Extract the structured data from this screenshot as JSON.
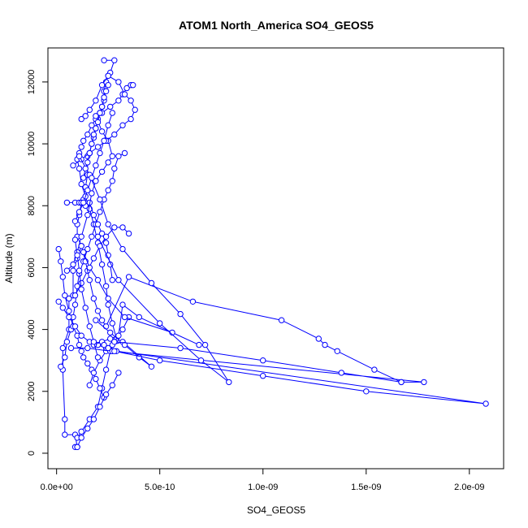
{
  "chart_data": {
    "type": "scatter",
    "title": "ATOM1 North_America SO4_GEOS5",
    "xlabel": "SO4_GEOS5",
    "ylabel": "Altitude (m)",
    "xlim": [
      -4.2e-11,
      2.166e-09
    ],
    "ylim": [
      -500,
      13100
    ],
    "x_ticks": [
      0,
      5e-10,
      1e-09,
      1.5e-09,
      2e-09
    ],
    "x_tick_labels": [
      "0.0e+00",
      "5.0e-10",
      "1.0e-09",
      "1.5e-09",
      "2.0e-09"
    ],
    "y_ticks": [
      0,
      2000,
      4000,
      6000,
      8000,
      10000,
      12000
    ],
    "y_tick_labels": [
      "0",
      "2000",
      "4000",
      "6000",
      "8000",
      "10000",
      "12000"
    ],
    "color": "#0000ff",
    "mode": "lines+open-circles",
    "series": [
      {
        "x": [
          9e-11,
          1e-10,
          9e-11,
          4e-11,
          4e-11,
          3e-11,
          3e-11,
          6e-11,
          6e-11,
          8e-11,
          8e-11,
          1e-10,
          1.2e-10,
          1e-10,
          1e-10,
          1.1e-10,
          1.2e-10,
          1.3e-10,
          1.4e-10,
          1.5e-10,
          1.5e-10,
          1.6e-10,
          1.7e-10,
          1.8e-10,
          1.9e-10,
          2e-10,
          2.1e-10,
          2.2e-10,
          2.3e-10,
          2.3e-10,
          2.4e-10,
          2.5e-10,
          2.6e-10,
          2.8e-10,
          2.3e-10
        ],
        "y": [
          200,
          200,
          600,
          600,
          1100,
          2700,
          3400,
          4000,
          5000,
          5100,
          5900,
          6300,
          6700,
          7000,
          7400,
          7700,
          8100,
          8200,
          8600,
          9000,
          9600,
          9700,
          10000,
          10200,
          10500,
          10800,
          11000,
          11200,
          11400,
          11700,
          12000,
          12200,
          12300,
          12700,
          12700
        ]
      },
      {
        "x": [
          1e-10,
          1.2e-10,
          1.6e-10,
          2e-10,
          2.2e-10,
          2.4e-10,
          2.6e-10,
          2.9e-10,
          2.7e-10,
          2.5e-10,
          2.4e-10,
          2.2e-10,
          2e-10,
          1.8e-10,
          1.6e-10,
          1.4e-10,
          1.2e-10,
          1.1e-10,
          1e-10,
          1.1e-10,
          1.2e-10,
          1.3e-10,
          1.5e-10,
          1.7e-10,
          1.9e-10,
          2.2e-10,
          2.6e-10,
          3e-10,
          3.2e-10,
          3.4e-10,
          3.6e-10,
          3.7e-10
        ],
        "y": [
          500,
          700,
          1100,
          1500,
          2100,
          2700,
          3300,
          3700,
          4200,
          4800,
          5400,
          6100,
          6800,
          7400,
          7900,
          8300,
          8700,
          9200,
          9500,
          9700,
          9900,
          10100,
          10300,
          10600,
          10800,
          11000,
          11200,
          11400,
          11600,
          11800,
          11900,
          11900
        ]
      },
      {
        "x": [
          2e-11,
          4e-11,
          5e-11,
          7e-11,
          8e-11,
          9e-11,
          1e-10,
          1.1e-10,
          1.3e-10,
          1.5e-10,
          1.7e-10,
          1.9e-10,
          2.1e-10,
          2.3e-10,
          2.5e-10,
          2.7e-10,
          2.8e-10,
          3e-10,
          3.3e-10
        ],
        "y": [
          2800,
          3100,
          3600,
          4000,
          4400,
          4800,
          5400,
          5800,
          6200,
          6600,
          7000,
          7400,
          7800,
          8200,
          8500,
          8800,
          9200,
          9600,
          9700
        ]
      },
      {
        "x": [
          5e-11,
          9e-11,
          1.1e-10,
          1.2e-10,
          1.4e-10,
          1.6e-10,
          1.8e-10,
          2e-10,
          2.2e-10,
          2.4e-10,
          2.5e-10,
          2.6e-10,
          2.7e-10
        ],
        "y": [
          8100,
          8100,
          8100,
          8100,
          8000,
          8100,
          7700,
          7400,
          7100,
          6800,
          6400,
          6100,
          5600
        ]
      },
      {
        "x": [
          5e-11,
          8e-11,
          1e-10,
          1.2e-10,
          1.5e-10,
          1.7e-10,
          1.9e-10,
          2.2e-10,
          2.5e-10,
          2.7e-10,
          2.5e-10,
          2.2e-10,
          1.9e-10
        ],
        "y": [
          5900,
          6100,
          6500,
          7000,
          7700,
          8400,
          8800,
          9100,
          9400,
          9600,
          10100,
          10400,
          10900
        ]
      },
      {
        "x": [
          1.2e-10,
          1.4e-10,
          1.6e-10,
          1.9e-10,
          2.2e-10,
          2.5e-10,
          3e-10,
          3.3e-10,
          3.6e-10,
          3.8e-10,
          3.6e-10,
          3.2e-10,
          2.8e-10,
          2.4e-10,
          2e-10,
          1.6e-10,
          1.2e-10,
          8e-11
        ],
        "y": [
          10800,
          10900,
          11100,
          11400,
          11900,
          12200,
          12000,
          11600,
          11400,
          11100,
          10800,
          10600,
          10300,
          10100,
          9900,
          9700,
          9500,
          9300
        ]
      },
      {
        "x": [
          1e-11,
          2e-11,
          3e-11,
          4e-11,
          6e-11,
          8e-11,
          1e-10,
          1.1e-10,
          1.2e-10,
          1.3e-10,
          1.5e-10,
          1.7e-10,
          1.9e-10,
          2.1e-10,
          2.3e-10
        ],
        "y": [
          6600,
          6200,
          5700,
          5100,
          4600,
          4100,
          3800,
          3500,
          3300,
          3100,
          2900,
          2700,
          2400,
          2100,
          1800
        ]
      },
      {
        "x": [
          9e-11,
          1.2e-10,
          1.5e-10,
          1.8e-10,
          2.1e-10,
          2.4e-10,
          2.8e-10,
          3.2e-10,
          3.5e-10
        ],
        "y": [
          5100,
          5500,
          5900,
          6300,
          6700,
          7000,
          7300,
          7300,
          7100
        ]
      },
      {
        "x": [
          1e-11,
          3e-11,
          6e-11,
          9e-11,
          1.2e-10,
          1.6e-10,
          2e-10,
          2.4e-10,
          2.8e-10,
          3.2e-10,
          3.5e-10
        ],
        "y": [
          4900,
          4700,
          4400,
          4100,
          3800,
          3600,
          3500,
          3400,
          3600,
          4000,
          4400
        ]
      },
      {
        "x": [
          1.2e-10,
          1.4e-10,
          1.6e-10,
          1.8e-10,
          2e-10,
          2.2e-10,
          2.4e-10,
          3.5e-10,
          6.6e-10,
          1.09e-09,
          1.27e-09,
          1.3e-09,
          1.36e-09,
          1.54e-09,
          1.67e-09
        ],
        "y": [
          6700,
          6200,
          5600,
          5000,
          4600,
          4300,
          4100,
          5700,
          4900,
          4300,
          3700,
          3500,
          3300,
          2700,
          2300
        ]
      },
      {
        "x": [
          1.6e-10,
          1.8e-10,
          2.1e-10,
          2.4e-10,
          2.7e-10,
          3.2e-10,
          4.6e-10,
          4e-10,
          3.3e-10,
          2.6e-10,
          1.9e-10
        ],
        "y": [
          2200,
          2600,
          3000,
          3300,
          3500,
          3600,
          2800,
          3100,
          3500,
          3900,
          4300
        ]
      },
      {
        "x": [
          1.8e-10,
          2.2e-10,
          2.6e-10,
          3e-10,
          3.2e-10,
          4e-10,
          6.9e-10,
          5.6e-10,
          3.3e-10,
          2.5e-10,
          2e-10,
          1.6e-10,
          1.3e-10
        ],
        "y": [
          3500,
          3600,
          3700,
          3800,
          4800,
          4400,
          3500,
          3900,
          4400,
          5000,
          5600,
          6000,
          6500
        ]
      },
      {
        "x": [
          7e-11,
          1.5e-10,
          2.6e-10,
          1.78e-09,
          1.67e-09,
          1.38e-09,
          1e-09,
          6e-10,
          2.8e-10
        ],
        "y": [
          3400,
          3400,
          3300,
          2300,
          2300,
          2600,
          3000,
          3400,
          3600
        ]
      },
      {
        "x": [
          2.3e-10,
          2.5e-10,
          2.7e-10,
          2.9e-10,
          2.08e-09,
          1.5e-09,
          1e-09,
          5e-10,
          2.8e-10
        ],
        "y": [
          3500,
          3400,
          3300,
          3300,
          1600,
          2000,
          2500,
          3000,
          3300
        ]
      },
      {
        "x": [
          1.1e-10,
          1.6e-10,
          2.1e-10,
          2.5e-10,
          3.2e-10,
          4.6e-10,
          6e-10,
          7.2e-10,
          8.35e-10,
          7e-10,
          5e-10,
          3e-10,
          2e-10
        ],
        "y": [
          9600,
          9000,
          8200,
          7400,
          6600,
          5500,
          4500,
          3500,
          2300,
          3000,
          4200,
          5600,
          7000
        ]
      },
      {
        "x": [
          1e-10,
          1.2e-10,
          1.5e-10,
          1.8e-10,
          2.1e-10,
          2.4e-10,
          2.7e-10,
          3e-10
        ],
        "y": [
          200,
          500,
          800,
          1100,
          1500,
          1900,
          2200,
          2600
        ]
      },
      {
        "x": [
          1.3e-10,
          1.4e-10,
          1.5e-10,
          1.6e-10,
          1.7e-10,
          1.8e-10,
          1.9e-10,
          2e-10,
          2.1e-10,
          2.2e-10,
          2.3e-10,
          2.4e-10,
          2.5e-10
        ],
        "y": [
          8900,
          9200,
          9400,
          9700,
          10000,
          10300,
          10500,
          10700,
          11000,
          11200,
          11500,
          11700,
          11900
        ]
      },
      {
        "x": [
          9e-11,
          1.1e-10,
          1.3e-10,
          1.5e-10,
          1.7e-10,
          1.9e-10,
          2.1e-10,
          2.3e-10,
          2.5e-10,
          2.7e-10
        ],
        "y": [
          7500,
          7800,
          8100,
          8500,
          8900,
          9300,
          9700,
          10100,
          10600,
          11000
        ]
      },
      {
        "x": [
          9e-11,
          1e-10,
          1.1e-10,
          1.2e-10,
          1.4e-10,
          1.6e-10,
          1.8e-10,
          2e-10
        ],
        "y": [
          6900,
          6400,
          5900,
          5300,
          4700,
          4100,
          3600,
          3100
        ]
      }
    ]
  }
}
